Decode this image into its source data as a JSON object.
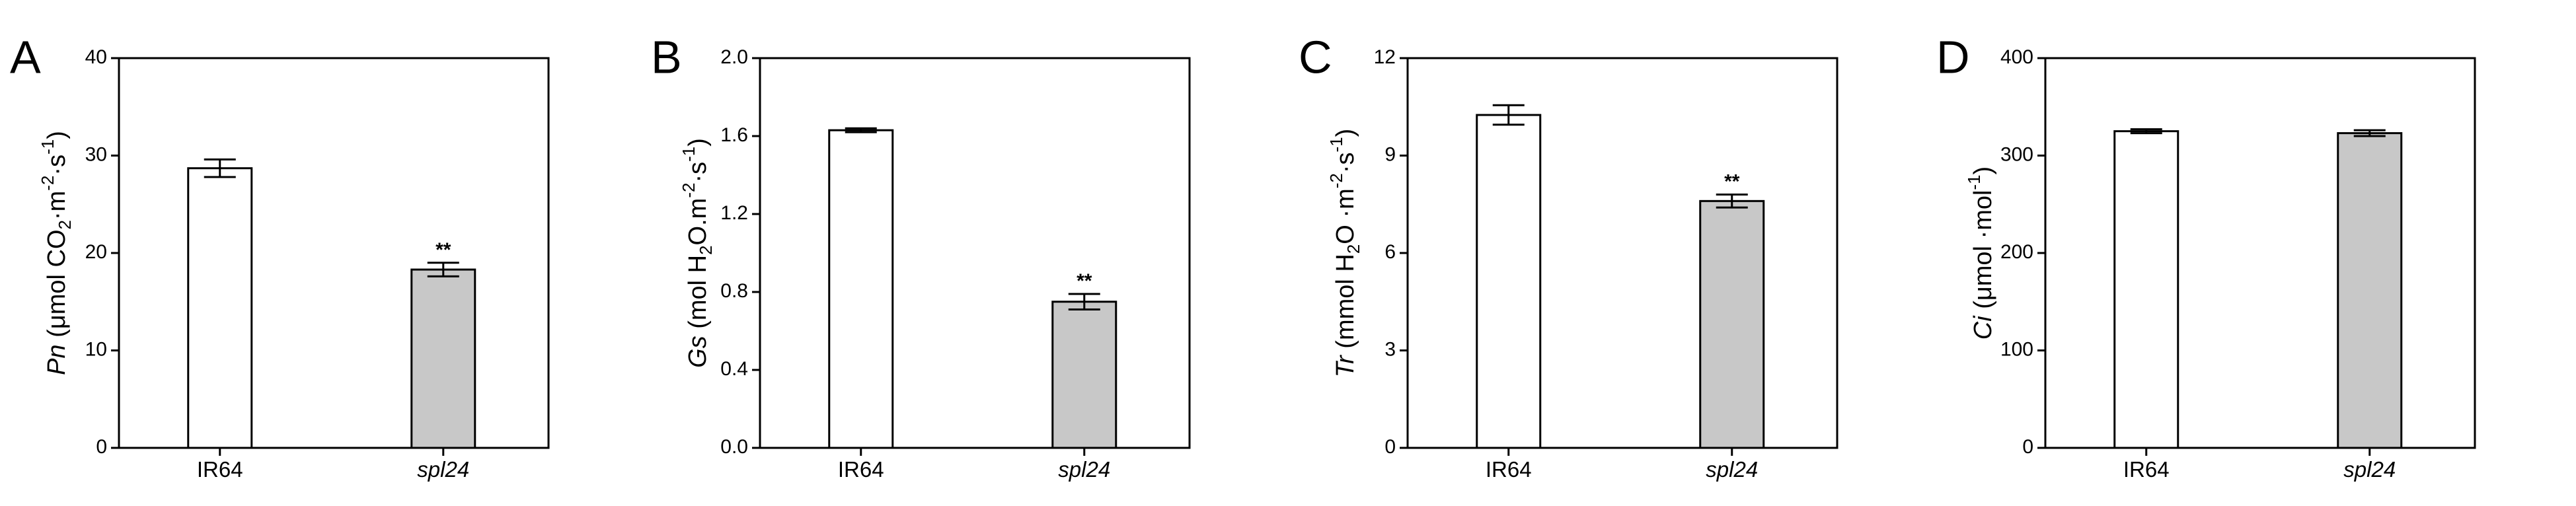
{
  "colors": {
    "axis": "#000000",
    "bar_wt": "#ffffff",
    "bar_mutant": "#c8c8c8"
  },
  "chart_data": [
    {
      "type": "bar",
      "panel": "A",
      "categories": [
        "IR64",
        "spl24"
      ],
      "values": [
        28.7,
        18.3
      ],
      "errors": [
        0.9,
        0.7
      ],
      "significance": [
        "",
        "**"
      ],
      "ylim": [
        0,
        40
      ],
      "yticks": [
        0,
        10,
        20,
        30,
        40
      ],
      "ylabel_parts": [
        {
          "t": "Pn",
          "style": "italic"
        },
        {
          "t": " (μmol CO"
        },
        {
          "t": "2",
          "style": "sub"
        },
        {
          "t": "·m"
        },
        {
          "t": "-2",
          "style": "sup"
        },
        {
          "t": "·s"
        },
        {
          "t": "-1",
          "style": "sup"
        },
        {
          "t": ")"
        }
      ]
    },
    {
      "type": "bar",
      "panel": "B",
      "categories": [
        "IR64",
        "spl24"
      ],
      "values": [
        1.63,
        0.75
      ],
      "errors": [
        0.01,
        0.04
      ],
      "significance": [
        "",
        "**"
      ],
      "ylim": [
        0,
        2.0
      ],
      "yticks": [
        0.0,
        0.4,
        0.8,
        1.2,
        1.6,
        2.0
      ],
      "ytick_decimals": 1,
      "ylabel_parts": [
        {
          "t": "Gs",
          "style": "italic"
        },
        {
          "t": " (mol H"
        },
        {
          "t": "2",
          "style": "sub"
        },
        {
          "t": "O.m"
        },
        {
          "t": "-2",
          "style": "sup"
        },
        {
          "t": "·s"
        },
        {
          "t": "-1",
          "style": "sup"
        },
        {
          "t": ")"
        }
      ]
    },
    {
      "type": "bar",
      "panel": "C",
      "categories": [
        "IR64",
        "spl24"
      ],
      "values": [
        10.25,
        7.6
      ],
      "errors": [
        0.3,
        0.2
      ],
      "significance": [
        "",
        "**"
      ],
      "ylim": [
        0,
        12
      ],
      "yticks": [
        0,
        3,
        6,
        9,
        12
      ],
      "ylabel_parts": [
        {
          "t": "Tr",
          "style": "italic"
        },
        {
          "t": " (mmol H"
        },
        {
          "t": "2",
          "style": "sub"
        },
        {
          "t": "O ·m"
        },
        {
          "t": "-2",
          "style": "sup"
        },
        {
          "t": "·s"
        },
        {
          "t": "-1",
          "style": "sup"
        },
        {
          "t": ")"
        }
      ]
    },
    {
      "type": "bar",
      "panel": "D",
      "categories": [
        "IR64",
        "spl24"
      ],
      "values": [
        325,
        323
      ],
      "errors": [
        2,
        3
      ],
      "significance": [
        "",
        ""
      ],
      "ylim": [
        0,
        400
      ],
      "yticks": [
        0,
        100,
        200,
        300,
        400
      ],
      "ylabel_parts": [
        {
          "t": "Ci",
          "style": "italic"
        },
        {
          "t": " (μmol ·mol"
        },
        {
          "t": "-1",
          "style": "sup"
        },
        {
          "t": ")"
        }
      ]
    }
  ]
}
